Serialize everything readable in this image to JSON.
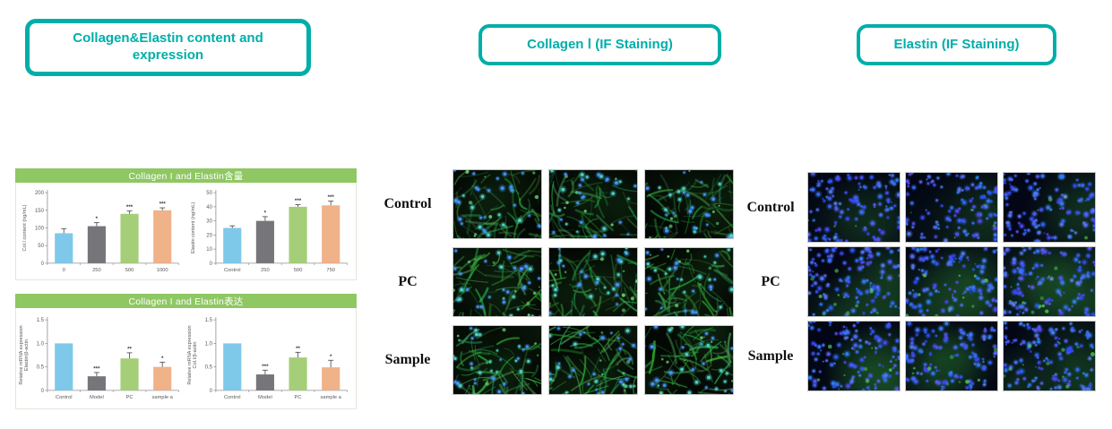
{
  "colors": {
    "teal_accent": "#00AEA9",
    "panel_header_green": "#8FC763",
    "bar_palette": [
      "#7EC9EA",
      "#76767A",
      "#A5CE79",
      "#F0B289"
    ],
    "axis_gray": "#909090",
    "collagen_stain_green": "#2E9B4E",
    "nuclei_blue": "#3D6BFF"
  },
  "headers": {
    "left": "Collagen&Elastin content and expression",
    "middle": "Collagen Ⅰ (IF Staining)",
    "right": "Elastin (IF Staining)"
  },
  "panels": [
    {
      "title": "Collagen I and Elastin含量"
    },
    {
      "title": "Collagen I and Elastin表达"
    }
  ],
  "chart_data": [
    {
      "type": "bar",
      "title": "",
      "ylabel_lines": [
        "Col.I content (ng/mL)"
      ],
      "categories": [
        "0",
        "250",
        "500",
        "1000"
      ],
      "values": [
        85,
        105,
        140,
        150
      ],
      "errors": [
        13,
        10,
        8,
        7
      ],
      "significance": [
        "",
        "*",
        "***",
        "***"
      ],
      "ylim": [
        0,
        200
      ],
      "yticks": [
        "0",
        "50",
        "100",
        "150",
        "200"
      ],
      "grid": false,
      "legend": "none"
    },
    {
      "type": "bar",
      "title": "",
      "ylabel_lines": [
        "Elastin content (ng/mL)"
      ],
      "categories": [
        "Control",
        "250",
        "500",
        "750"
      ],
      "values": [
        25,
        30,
        40,
        41
      ],
      "errors": [
        1.5,
        3,
        1.5,
        3
      ],
      "significance": [
        "",
        "*",
        "***",
        "***"
      ],
      "ylim": [
        0,
        50
      ],
      "yticks": [
        "0",
        "10",
        "20",
        "30",
        "40",
        "50"
      ],
      "grid": false,
      "legend": "none"
    },
    {
      "type": "bar",
      "title": "",
      "ylabel_lines": [
        "Relative mRNA expression",
        "Elastin/β-actin"
      ],
      "categories": [
        "Control",
        "Model",
        "PC",
        "sample a"
      ],
      "values": [
        1.0,
        0.3,
        0.68,
        0.5
      ],
      "errors": [
        0,
        0.08,
        0.12,
        0.1
      ],
      "significance": [
        "",
        "***",
        "**",
        "*"
      ],
      "ylim": [
        0,
        1.5
      ],
      "yticks": [
        "0",
        "0.5",
        "1.0",
        "1.5"
      ],
      "grid": false,
      "legend": "none"
    },
    {
      "type": "bar",
      "title": "",
      "ylabel_lines": [
        "Relative mRNA expression",
        "Col.I/β-actin"
      ],
      "categories": [
        "Control",
        "Model",
        "PC",
        "sample a"
      ],
      "values": [
        1.0,
        0.34,
        0.7,
        0.49
      ],
      "errors": [
        0,
        0.09,
        0.11,
        0.15
      ],
      "significance": [
        "",
        "***",
        "**",
        "*"
      ],
      "ylim": [
        0,
        1.5
      ],
      "yticks": [
        "0",
        "0.5",
        "1.0",
        "1.5"
      ],
      "grid": false,
      "legend": "none"
    }
  ],
  "if_grids": [
    {
      "id": "collagen-if",
      "stain": "green cytoplasm with blue nuclei on black",
      "cols": 3,
      "rows": [
        {
          "label": "Control",
          "green_intensity": 0.75
        },
        {
          "label": "PC",
          "green_intensity": 0.9
        },
        {
          "label": "Sample",
          "green_intensity": 1.0
        }
      ]
    },
    {
      "id": "elastin-if",
      "stain": "dense blue nuclei with green haze on dark navy",
      "cols": 3,
      "rows": [
        {
          "label": "Control",
          "green_intensity": 0.25
        },
        {
          "label": "PC",
          "green_intensity": 1.0
        },
        {
          "label": "Sample",
          "green_intensity": 0.85
        }
      ]
    }
  ]
}
